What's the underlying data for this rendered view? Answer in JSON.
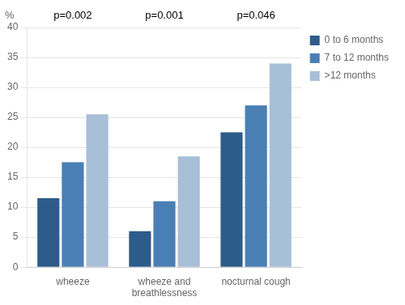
{
  "chart_data": {
    "type": "bar",
    "ylabel": "%",
    "categories": [
      "wheeze",
      "wheeze and\nbreathlessness",
      "nocturnal cough"
    ],
    "series": [
      {
        "name": "0 to 6 months",
        "color": "#2e5c8a",
        "values": [
          11.5,
          6.0,
          22.5
        ]
      },
      {
        "name": "7 to 12 months",
        "color": "#4a7fb5",
        "values": [
          17.5,
          11.0,
          27.0
        ]
      },
      {
        "name": ">12 months",
        "color": "#a8bfd8",
        "values": [
          25.5,
          18.5,
          34.0
        ]
      }
    ],
    "annotations": [
      {
        "category": "wheeze",
        "text": "p=0.002"
      },
      {
        "category": "wheeze and\nbreathlessness",
        "text": "p=0.001"
      },
      {
        "category": "nocturnal cough",
        "text": "p=0.046"
      }
    ],
    "ylim": [
      0,
      40
    ],
    "yticks": [
      0,
      5,
      10,
      15,
      20,
      25,
      30,
      35,
      40
    ],
    "grid": true,
    "legend": "right"
  }
}
